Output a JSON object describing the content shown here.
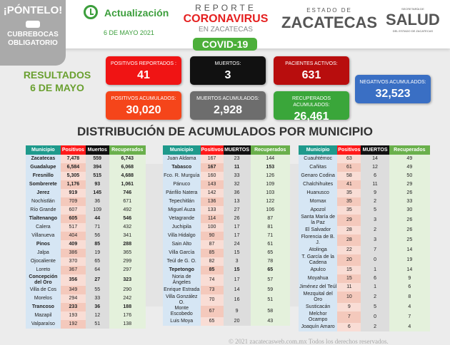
{
  "header": {
    "pontelo": "¡PÓNTELO!",
    "mask_note": "CUBREBOCAS OBLIGATORIO",
    "update_label": "Actualización",
    "date": "6 DE MAYO 2021",
    "report_line1": "REPORTE",
    "report_line2": "CORONAVIRUS",
    "report_line3": "EN ZACATECAS",
    "covid": "COVID-19",
    "state_small": "ESTADO DE",
    "state_big": "ZACATECAS",
    "salud_small": "SECRETARÍA DE",
    "salud_big": "SALUD",
    "salud_sub": "DEL ESTADO DE ZACATECAS"
  },
  "results": {
    "line1": "RESULTADOS",
    "line2": "6 DE MAYO"
  },
  "stats": [
    {
      "label": "POSITIVOS REPORTADOS :",
      "value": "41",
      "color": "#f01414"
    },
    {
      "label": "MUERTOS:",
      "value": "3",
      "color": "#111111"
    },
    {
      "label": "PACIENTES ACTIVOS:",
      "value": "631",
      "color": "#b80d0d"
    },
    {
      "label": "POSITIVOS ACUMULADOS:",
      "value": "30,020",
      "color": "#f5451a"
    },
    {
      "label": "MUERTOS ACUMULADOS:",
      "value": "2,928",
      "color": "#6d6d6d"
    },
    {
      "label": "RECUPERADOS ACUMULADOS:",
      "value": "26,461",
      "color": "#3aa63a"
    },
    {
      "label": "NEGATIVOS ACUMULADOS:",
      "value": "32,523",
      "color": "#3a6fc4"
    }
  ],
  "section_title": "DISTRIBUCIÓN DE ACUMULADOS POR MUNICIPIO",
  "tables": [
    {
      "headers": [
        "Municipio",
        "Positivos",
        "Muertos",
        "Recuperados"
      ],
      "rows": [
        [
          "Zacatecas",
          "7,478",
          "559",
          "6,743",
          1
        ],
        [
          "Guadalupe",
          "6,584",
          "394",
          "6,068",
          1
        ],
        [
          "Fresnillo",
          "5,305",
          "515",
          "4,688",
          1
        ],
        [
          "Sombrerete",
          "1,176",
          "93",
          "1,061",
          1
        ],
        [
          "Jerez",
          "919",
          "145",
          "746",
          1
        ],
        [
          "Nochistlán",
          "709",
          "36",
          "671",
          0
        ],
        [
          "Río Grande",
          "607",
          "109",
          "492",
          0
        ],
        [
          "Tlaltenango",
          "605",
          "44",
          "546",
          1
        ],
        [
          "Calera",
          "517",
          "71",
          "432",
          0
        ],
        [
          "Villanueva",
          "404",
          "56",
          "341",
          0
        ],
        [
          "Pinos",
          "409",
          "85",
          "288",
          1
        ],
        [
          "Jalpa",
          "386",
          "19",
          "365",
          0
        ],
        [
          "Ojocaliente",
          "370",
          "65",
          "299",
          0
        ],
        [
          "Loreto",
          "367",
          "64",
          "297",
          0
        ],
        [
          "Concepción del Oro",
          "356",
          "27",
          "323",
          1
        ],
        [
          "Villa de Cos",
          "349",
          "55",
          "290",
          0
        ],
        [
          "Morelos",
          "294",
          "33",
          "242",
          0
        ],
        [
          "Trancoso",
          "233",
          "36",
          "188",
          1
        ],
        [
          "Mazapil",
          "193",
          "12",
          "176",
          0
        ],
        [
          "Valparaíso",
          "192",
          "51",
          "138",
          0
        ]
      ]
    },
    {
      "headers": [
        "Municipio",
        "Positivos",
        "MUERTOS",
        "Recuperados"
      ],
      "rows": [
        [
          "Juan Aldama",
          "167",
          "23",
          "144",
          0
        ],
        [
          "Tabasco",
          "167",
          "11",
          "153",
          1
        ],
        [
          "Fco. R. Murguía",
          "160",
          "33",
          "126",
          0
        ],
        [
          "Pánuco",
          "143",
          "32",
          "109",
          0
        ],
        [
          "Pánfilo Natera",
          "142",
          "36",
          "103",
          0
        ],
        [
          "Tepechitlán",
          "136",
          "13",
          "122",
          0
        ],
        [
          "Miguel Auza",
          "133",
          "27",
          "106",
          0
        ],
        [
          "Vetagrande",
          "114",
          "26",
          "87",
          0
        ],
        [
          "Juchipila",
          "100",
          "17",
          "81",
          0
        ],
        [
          "Villa Hidalgo",
          "90",
          "17",
          "71",
          0
        ],
        [
          "Sain Alto",
          "87",
          "24",
          "61",
          0
        ],
        [
          "Villa García",
          "85",
          "15",
          "65",
          0
        ],
        [
          "Teúl de G. O.",
          "82",
          "3",
          "78",
          0
        ],
        [
          "Tepetongo",
          "85",
          "15",
          "65",
          1
        ],
        [
          "Noria de Ángeles",
          "74",
          "17",
          "57",
          0
        ],
        [
          "Enrique Estrada",
          "73",
          "14",
          "59",
          0
        ],
        [
          "Villa González O.",
          "70",
          "16",
          "51",
          0
        ],
        [
          "Monte Escobedo",
          "67",
          "9",
          "58",
          0
        ],
        [
          "Luis Moya",
          "65",
          "20",
          "43",
          0
        ]
      ]
    },
    {
      "headers": [
        "Municipio",
        "Positivos",
        "MUERTOS",
        "Recuperados"
      ],
      "rows": [
        [
          "Cuauhtémoc",
          "63",
          "14",
          "49",
          0
        ],
        [
          "Cañitas",
          "61",
          "12",
          "49",
          0
        ],
        [
          "Genaro Codina",
          "58",
          "6",
          "50",
          0
        ],
        [
          "Chalchihuites",
          "41",
          "11",
          "29",
          0
        ],
        [
          "Huanusco",
          "35",
          "9",
          "26",
          0
        ],
        [
          "Momax",
          "35",
          "2",
          "33",
          0
        ],
        [
          "Apozol",
          "35",
          "5",
          "30",
          0
        ],
        [
          "Santa María de la Paz",
          "29",
          "3",
          "26",
          0
        ],
        [
          "El Salvador",
          "28",
          "2",
          "26",
          0
        ],
        [
          "Florencia de B. J.",
          "28",
          "3",
          "25",
          0
        ],
        [
          "Atolinga",
          "22",
          "7",
          "14",
          0
        ],
        [
          "T. García de la Cadena",
          "20",
          "0",
          "19",
          0
        ],
        [
          "Apulco",
          "15",
          "1",
          "14",
          0
        ],
        [
          "Moyahua",
          "15",
          "6",
          "9",
          0
        ],
        [
          "Jiménez del Teúl",
          "11",
          "1",
          "6",
          0
        ],
        [
          "Mezquital del Oro",
          "10",
          "2",
          "8",
          0
        ],
        [
          "Susticacán",
          "9",
          "5",
          "4",
          0
        ],
        [
          "Melchor Ocampo",
          "7",
          "0",
          "7",
          0
        ],
        [
          "Joaquín Amaro",
          "6",
          "2",
          "4",
          0
        ]
      ]
    }
  ],
  "footer": "© 2021 zacatecasweb.com.mx Todos los derechos reservados."
}
